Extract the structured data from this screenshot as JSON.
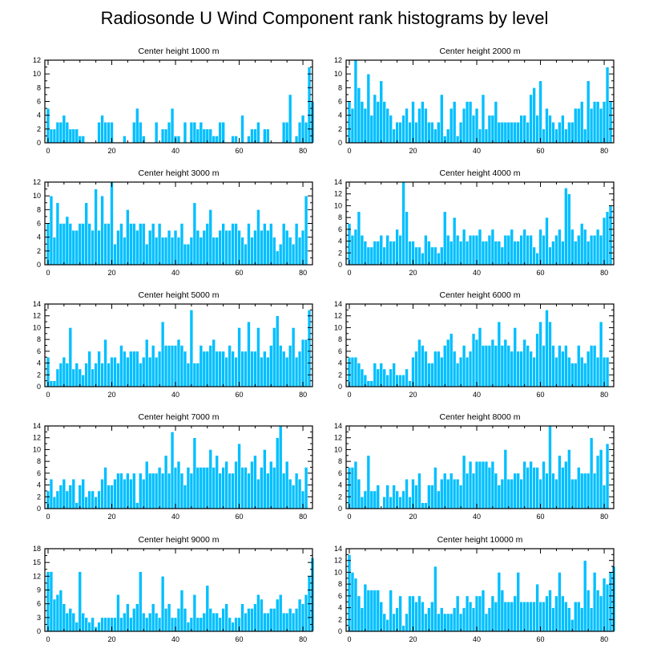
{
  "title": "Radiosonde U Wind Component rank histograms by level",
  "colors": {
    "bar_fill": "#00bfff",
    "bar_edge": "#ffffff",
    "axis": "#000000"
  },
  "chart_data": [
    {
      "type": "bar",
      "title": "Center height 1000 m",
      "x_start": 0,
      "xlim": [
        -1,
        83
      ],
      "xticks": [
        0,
        20,
        40,
        60,
        80
      ],
      "ylim": [
        0,
        12
      ],
      "yticks": [
        0,
        2,
        4,
        6,
        8,
        10,
        12
      ],
      "values": [
        5,
        2,
        2,
        3,
        3,
        4,
        3,
        2,
        2,
        2,
        1,
        1,
        0,
        0,
        0,
        0,
        3,
        4,
        3,
        3,
        3,
        0,
        0,
        0,
        1,
        0,
        0,
        3,
        5,
        3,
        1,
        0,
        0,
        0,
        3,
        0,
        2,
        2,
        3,
        5,
        1,
        1,
        0,
        3,
        0,
        3,
        3,
        2,
        3,
        2,
        2,
        2,
        1,
        1,
        3,
        3,
        0,
        0,
        1,
        1,
        0,
        4,
        0,
        1,
        2,
        2,
        3,
        0,
        2,
        2,
        0,
        0,
        0,
        0,
        3,
        3,
        7,
        0,
        1,
        3,
        4,
        3,
        11,
        6
      ]
    },
    {
      "type": "bar",
      "title": "Center height 2000 m",
      "x_start": 0,
      "xlim": [
        -1,
        83
      ],
      "xticks": [
        0,
        20,
        40,
        60,
        80
      ],
      "ylim": [
        0,
        12
      ],
      "yticks": [
        0,
        2,
        4,
        6,
        8,
        10,
        12
      ],
      "values": [
        6,
        5,
        12,
        8,
        6,
        5,
        10,
        4,
        7,
        6,
        9,
        6,
        5,
        4,
        2,
        3,
        3,
        4,
        5,
        3,
        6,
        3,
        5,
        6,
        5,
        3,
        3,
        2,
        3,
        7,
        1,
        2,
        5,
        6,
        1,
        3,
        5,
        6,
        6,
        4,
        5,
        2,
        7,
        2,
        4,
        4,
        6,
        3,
        3,
        3,
        3,
        3,
        3,
        3,
        4,
        4,
        3,
        7,
        8,
        4,
        9,
        2,
        5,
        4,
        3,
        2,
        3,
        4,
        2,
        3,
        3,
        5,
        5,
        6,
        2,
        9,
        5,
        6,
        6,
        5,
        6,
        11,
        6
      ]
    },
    {
      "type": "bar",
      "title": "Center height 3000 m",
      "x_start": 0,
      "xlim": [
        -1,
        83
      ],
      "xticks": [
        0,
        20,
        40,
        60,
        80
      ],
      "ylim": [
        0,
        12
      ],
      "yticks": [
        0,
        2,
        4,
        6,
        8,
        10,
        12
      ],
      "values": [
        6,
        10,
        4,
        9,
        6,
        6,
        7,
        6,
        5,
        5,
        6,
        6,
        9,
        6,
        5,
        11,
        5,
        10,
        6,
        6,
        12,
        3,
        5,
        6,
        4,
        8,
        6,
        6,
        5,
        6,
        6,
        3,
        5,
        6,
        4,
        6,
        4,
        4,
        5,
        4,
        5,
        4,
        6,
        3,
        3,
        4,
        9,
        5,
        4,
        5,
        6,
        8,
        4,
        4,
        5,
        6,
        5,
        5,
        6,
        6,
        5,
        4,
        3,
        6,
        4,
        5,
        8,
        5,
        6,
        5,
        6,
        4,
        2,
        3,
        6,
        5,
        4,
        3,
        6,
        4,
        5,
        10
      ]
    },
    {
      "type": "bar",
      "title": "Center height 4000 m",
      "x_start": 0,
      "xlim": [
        -1,
        83
      ],
      "xticks": [
        0,
        20,
        40,
        60,
        80
      ],
      "ylim": [
        0,
        14
      ],
      "yticks": [
        0,
        2,
        4,
        6,
        8,
        10,
        12,
        14
      ],
      "values": [
        7,
        5,
        6,
        9,
        5,
        4,
        3,
        3,
        4,
        4,
        5,
        3,
        5,
        4,
        4,
        6,
        5,
        14,
        9,
        4,
        4,
        3,
        3,
        2,
        5,
        4,
        3,
        3,
        2,
        3,
        9,
        5,
        4,
        8,
        5,
        4,
        6,
        4,
        5,
        5,
        5,
        6,
        4,
        4,
        5,
        6,
        4,
        4,
        3,
        5,
        5,
        6,
        4,
        4,
        5,
        6,
        5,
        5,
        3,
        2,
        6,
        5,
        8,
        3,
        4,
        5,
        6,
        4,
        13,
        12,
        6,
        4,
        5,
        7,
        6,
        4,
        5,
        5,
        6,
        5,
        8,
        9,
        10
      ]
    },
    {
      "type": "bar",
      "title": "Center height 5000 m",
      "x_start": 0,
      "xlim": [
        -1,
        83
      ],
      "xticks": [
        0,
        20,
        40,
        60,
        80
      ],
      "ylim": [
        0,
        14
      ],
      "yticks": [
        0,
        2,
        4,
        6,
        8,
        10,
        12,
        14
      ],
      "values": [
        5,
        1,
        1,
        3,
        4,
        5,
        4,
        10,
        3,
        4,
        3,
        2,
        4,
        6,
        3,
        4,
        6,
        4,
        8,
        4,
        5,
        5,
        4,
        7,
        6,
        5,
        6,
        6,
        6,
        4,
        5,
        8,
        5,
        7,
        5,
        6,
        11,
        7,
        7,
        7,
        7,
        8,
        7,
        6,
        4,
        13,
        4,
        4,
        7,
        6,
        6,
        7,
        8,
        6,
        6,
        6,
        5,
        7,
        6,
        5,
        10,
        6,
        6,
        11,
        6,
        6,
        10,
        5,
        6,
        5,
        7,
        10,
        12,
        7,
        6,
        5,
        7,
        10,
        5,
        6,
        8,
        8,
        13
      ]
    },
    {
      "type": "bar",
      "title": "Center height 6000 m",
      "x_start": 0,
      "xlim": [
        -1,
        83
      ],
      "xticks": [
        0,
        20,
        40,
        60,
        80
      ],
      "ylim": [
        0,
        14
      ],
      "yticks": [
        0,
        2,
        4,
        6,
        8,
        10,
        12,
        14
      ],
      "values": [
        5,
        5,
        5,
        4,
        3,
        2,
        1,
        1,
        4,
        3,
        4,
        3,
        2,
        3,
        4,
        2,
        2,
        2,
        3,
        1,
        5,
        6,
        8,
        7,
        6,
        4,
        4,
        6,
        6,
        5,
        7,
        8,
        9,
        6,
        4,
        5,
        7,
        5,
        6,
        9,
        8,
        10,
        7,
        7,
        7,
        8,
        7,
        11,
        7,
        8,
        7,
        6,
        10,
        6,
        6,
        8,
        7,
        6,
        5,
        9,
        11,
        7,
        13,
        11,
        7,
        5,
        7,
        6,
        7,
        5,
        4,
        4,
        7,
        5,
        4,
        6,
        7,
        7,
        5,
        11,
        5,
        5
      ]
    },
    {
      "type": "bar",
      "title": "Center height 7000 m",
      "x_start": 0,
      "xlim": [
        -1,
        83
      ],
      "xticks": [
        0,
        20,
        40,
        60,
        80
      ],
      "ylim": [
        0,
        14
      ],
      "yticks": [
        0,
        2,
        4,
        6,
        8,
        10,
        12,
        14
      ],
      "values": [
        3,
        5,
        2,
        3,
        4,
        5,
        3,
        4,
        5,
        1,
        4,
        5,
        2,
        3,
        3,
        2,
        3,
        5,
        7,
        4,
        4,
        5,
        6,
        6,
        5,
        6,
        5,
        6,
        1,
        6,
        5,
        8,
        6,
        6,
        6,
        7,
        6,
        9,
        6,
        13,
        7,
        8,
        6,
        4,
        7,
        6,
        12,
        7,
        7,
        7,
        7,
        10,
        7,
        9,
        6,
        7,
        8,
        6,
        6,
        8,
        11,
        7,
        7,
        6,
        8,
        9,
        5,
        7,
        10,
        6,
        8,
        7,
        12,
        14,
        6,
        8,
        5,
        4,
        6,
        5,
        3,
        7
      ]
    },
    {
      "type": "bar",
      "title": "Center height 8000 m",
      "x_start": 0,
      "xlim": [
        -1,
        83
      ],
      "xticks": [
        0,
        20,
        40,
        60,
        80
      ],
      "ylim": [
        0,
        14
      ],
      "yticks": [
        0,
        2,
        4,
        6,
        8,
        10,
        12,
        14
      ],
      "values": [
        7,
        7,
        8,
        5,
        2,
        3,
        9,
        3,
        3,
        4,
        0,
        2,
        4,
        2,
        4,
        3,
        2,
        3,
        5,
        2,
        5,
        4,
        6,
        1,
        1,
        4,
        4,
        7,
        3,
        5,
        6,
        5,
        6,
        5,
        5,
        4,
        9,
        6,
        8,
        6,
        8,
        8,
        8,
        8,
        7,
        8,
        6,
        4,
        5,
        10,
        5,
        5,
        6,
        6,
        5,
        8,
        7,
        8,
        7,
        7,
        5,
        8,
        6,
        14,
        6,
        5,
        9,
        7,
        8,
        10,
        5,
        5,
        7,
        6,
        6,
        6,
        12,
        6,
        9,
        10,
        4,
        11
      ]
    },
    {
      "type": "bar",
      "title": "Center height 9000 m",
      "x_start": 0,
      "xlim": [
        -1,
        83
      ],
      "xticks": [
        0,
        20,
        40,
        60,
        80
      ],
      "ylim": [
        0,
        18
      ],
      "yticks": [
        0,
        3,
        6,
        9,
        12,
        15,
        18
      ],
      "values": [
        13,
        13,
        7,
        8,
        9,
        6,
        4,
        5,
        4,
        2,
        13,
        4,
        3,
        2,
        3,
        1,
        2,
        3,
        3,
        3,
        3,
        3,
        8,
        3,
        4,
        6,
        3,
        5,
        6,
        13,
        4,
        3,
        4,
        6,
        4,
        3,
        12,
        5,
        6,
        3,
        3,
        5,
        9,
        5,
        2,
        3,
        8,
        3,
        3,
        4,
        10,
        5,
        4,
        4,
        3,
        5,
        6,
        3,
        2,
        3,
        3,
        6,
        4,
        5,
        5,
        6,
        8,
        7,
        4,
        4,
        5,
        5,
        7,
        8,
        4,
        4,
        5,
        4,
        5,
        7,
        6,
        8,
        12,
        16
      ]
    },
    {
      "type": "bar",
      "title": "Center height 10000 m",
      "x_start": 0,
      "xlim": [
        -1,
        83
      ],
      "xticks": [
        0,
        20,
        40,
        60,
        80
      ],
      "ylim": [
        0,
        14
      ],
      "yticks": [
        0,
        2,
        4,
        6,
        8,
        10,
        12,
        14
      ],
      "values": [
        13,
        10,
        9,
        6,
        4,
        8,
        7,
        7,
        7,
        7,
        5,
        3,
        2,
        7,
        3,
        4,
        6,
        1,
        3,
        6,
        6,
        5,
        6,
        5,
        3,
        4,
        5,
        11,
        3,
        4,
        3,
        3,
        3,
        4,
        6,
        3,
        4,
        6,
        5,
        4,
        6,
        6,
        7,
        3,
        4,
        6,
        5,
        10,
        7,
        5,
        5,
        5,
        6,
        10,
        5,
        5,
        5,
        5,
        5,
        8,
        5,
        5,
        6,
        7,
        4,
        6,
        10,
        6,
        5,
        4,
        2,
        5,
        5,
        4,
        12,
        7,
        4,
        10,
        7,
        6,
        9,
        8,
        10,
        11
      ]
    }
  ]
}
